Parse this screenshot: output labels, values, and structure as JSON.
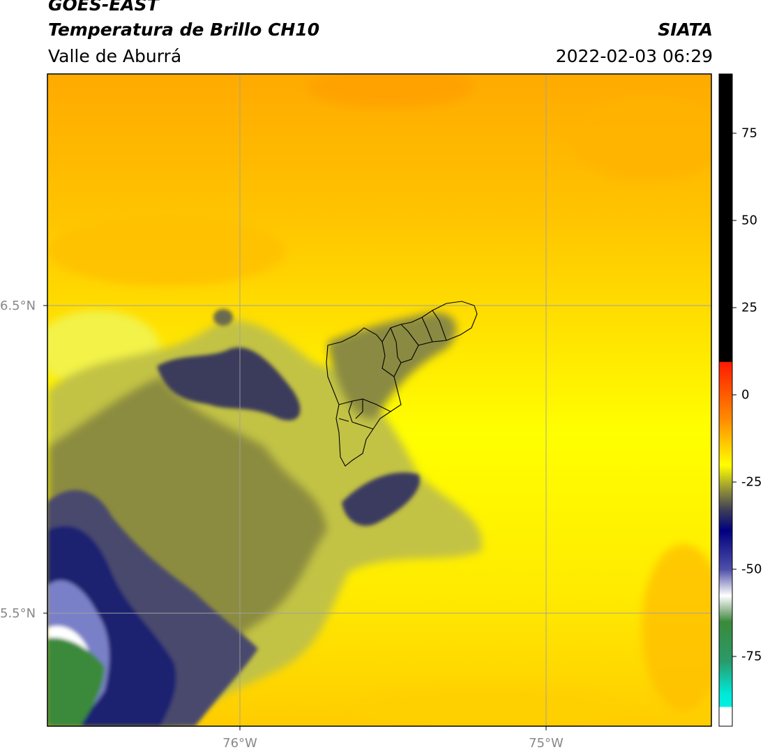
{
  "header": {
    "satellite": "GOES-EAST",
    "product": "Temperatura de Brillo CH10",
    "region": "Valle de Aburrá",
    "brand": "SIATA",
    "timestamp": "2022-02-03 06:29"
  },
  "axes": {
    "latitude_labels": [
      "6.5°N",
      "5.5°N"
    ],
    "longitude_labels": [
      "76°W",
      "75°W"
    ]
  },
  "colorbar": {
    "ticks": [
      "75",
      "50",
      "25",
      "0",
      "-25",
      "-50",
      "-75"
    ],
    "tick_values": [
      75,
      50,
      25,
      0,
      -25,
      -50,
      -75
    ],
    "range": [
      -95,
      92
    ]
  },
  "colors": {
    "cloud_top_dark": "#1e2070",
    "cold_green": "#3a8a3a",
    "warm_yellow": "#ffff00",
    "warm_orange": "#ffaa00",
    "boundary": "#000000",
    "grid": "#a0a0a0"
  }
}
